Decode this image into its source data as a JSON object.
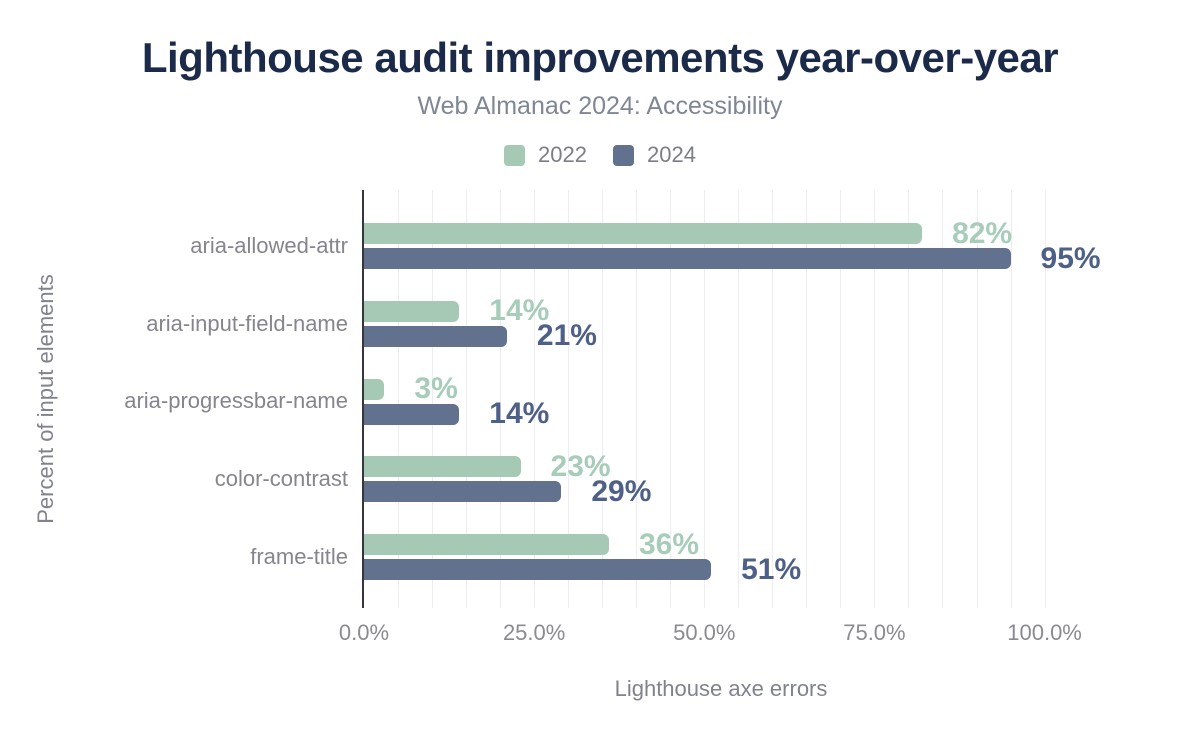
{
  "chart_data": {
    "type": "bar",
    "orientation": "horizontal",
    "title": "Lighthouse audit improvements year-over-year",
    "subtitle": "Web Almanac 2024: Accessibility",
    "xlabel": "Lighthouse axe errors",
    "ylabel": "Percent of input elements",
    "categories": [
      "aria-allowed-attr",
      "aria-input-field-name",
      "aria-progressbar-name",
      "color-contrast",
      "frame-title"
    ],
    "series": [
      {
        "name": "2022",
        "color": "#a5c9b5",
        "label_color": "#a7ccba",
        "values": [
          82,
          14,
          3,
          23,
          36
        ]
      },
      {
        "name": "2024",
        "color": "#61718e",
        "label_color": "#4e6087",
        "values": [
          95,
          21,
          14,
          29,
          51
        ]
      }
    ],
    "value_label_suffix": "%",
    "x_ticks": [
      {
        "label": "0.0%",
        "value": 0
      },
      {
        "label": "25.0%",
        "value": 25
      },
      {
        "label": "50.0%",
        "value": 50
      },
      {
        "label": "75.0%",
        "value": 75
      },
      {
        "label": "100.0%",
        "value": 100
      }
    ],
    "xlim": [
      0,
      105.5
    ],
    "gridline_step": 5,
    "grid": true,
    "legend_position": "top",
    "colors": {
      "title": "#1c2a49",
      "subtitle": "#7f8694",
      "axis_line": "#35353f",
      "gridline": "#ececf1",
      "tick_label": "#8a8b91",
      "category_label": "#85868d",
      "background": "#ffffff"
    }
  }
}
